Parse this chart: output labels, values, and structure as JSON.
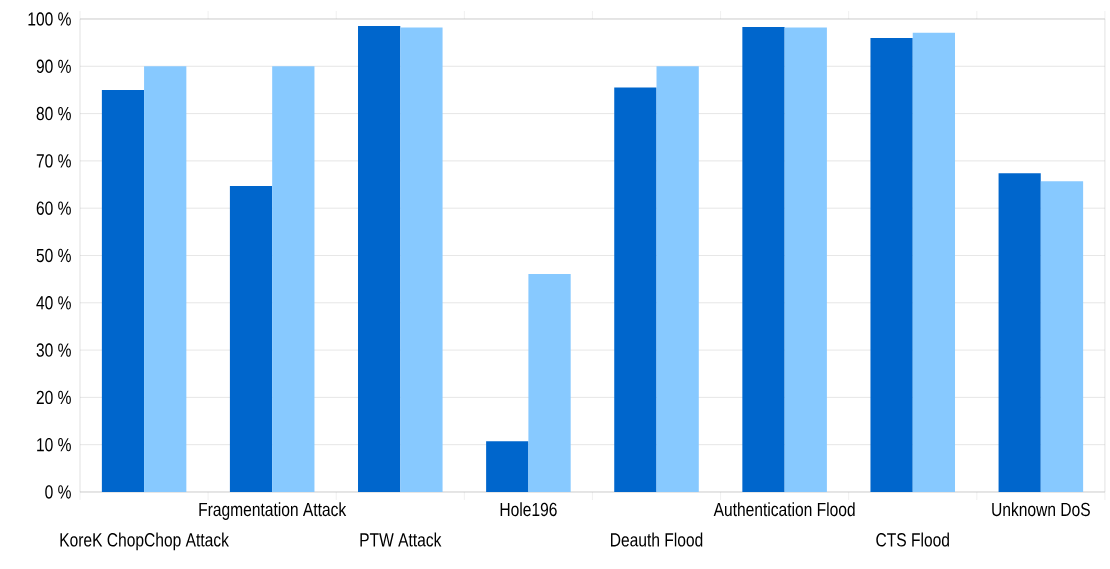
{
  "chart_data": {
    "type": "bar",
    "categories": [
      "KoreK ChopChop Attack",
      "Fragmentation Attack",
      "PTW Attack",
      "Hole196",
      "Deauth Flood",
      "Authentication Flood",
      "CTS Flood",
      "Unknown DoS"
    ],
    "series": [
      {
        "color": "#0066cc",
        "values": [
          85,
          64.7,
          98.5,
          10.7,
          85.5,
          98.3,
          96,
          67.4
        ]
      },
      {
        "color": "#87c9ff",
        "values": [
          90,
          90,
          98.2,
          46.1,
          90,
          98.2,
          97.1,
          65.7
        ]
      }
    ],
    "ylim": [
      0,
      100
    ],
    "yticks": [
      {
        "value": 0,
        "label": "0 %"
      },
      {
        "value": 10,
        "label": "10 %"
      },
      {
        "value": 20,
        "label": "20 %"
      },
      {
        "value": 30,
        "label": "30 %"
      },
      {
        "value": 40,
        "label": "40 %"
      },
      {
        "value": 50,
        "label": "50 %"
      },
      {
        "value": 60,
        "label": "60 %"
      },
      {
        "value": 70,
        "label": "70 %"
      },
      {
        "value": 80,
        "label": "80 %"
      },
      {
        "value": 90,
        "label": "90 %"
      },
      {
        "value": 100,
        "label": "100 %"
      }
    ],
    "grid": "y"
  }
}
